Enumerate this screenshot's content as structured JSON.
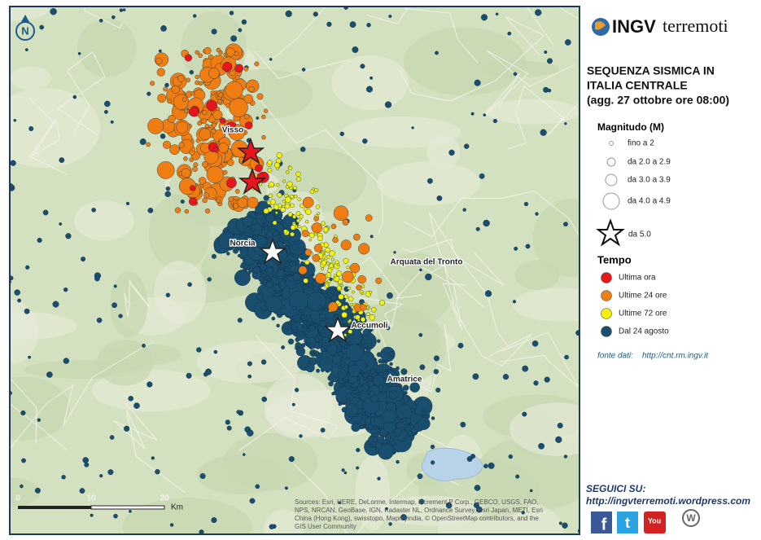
{
  "header": {
    "logo_bold": "INGV",
    "logo_rest": "terremoti"
  },
  "title": [
    "SEQUENZA SISMICA IN",
    "ITALIA CENTRALE",
    "(agg. 27 ottobre ore 08:00)"
  ],
  "legend": {
    "magnitude_title": "Magnitudo (M)",
    "magnitudes": [
      "fino a 2",
      "da 2.0 a 2.9",
      "da 3.0 a 3.9",
      "da 4.0 a 4.9",
      "da 5.0"
    ],
    "time_title": "Tempo",
    "times": [
      {
        "label": "Ultima ora",
        "color": "#e8151b"
      },
      {
        "label": "Ultime 24 ore",
        "color": "#f07d12"
      },
      {
        "label": "Ultime 72 ore",
        "color": "#f5f20a"
      },
      {
        "label": "Dal 24 agosto",
        "color": "#1a4e6e"
      }
    ]
  },
  "source": {
    "label": "fonte dati:",
    "url": "http://cnt.rm.ingv.it"
  },
  "follow": {
    "label": "SEGUICI SU:",
    "url": "http://ingvterremoti.wordpress.com"
  },
  "social": [
    "f",
    "t",
    "You",
    "W"
  ],
  "map": {
    "north": "N",
    "places": [
      "Visso",
      "Norcia",
      "Arquata del Tronto",
      "Accumoli",
      "Amatrice"
    ],
    "scale": [
      "0",
      "10",
      "20"
    ],
    "scale_unit": "Km",
    "attribution": [
      "Sources: Esri, HERE, DeLorme, Intermap, increment P Corp., GEBCO, USGS, FAO,",
      "NPS, NRCAN, GeoBase, IGN, Kadaster NL, Ordnance Survey, Esri Japan, METI, Esri",
      "China (Hong Kong), swisstopo, Mapmyindia, © OpenStreetMap contributors, and the",
      "GIS User Community"
    ]
  }
}
